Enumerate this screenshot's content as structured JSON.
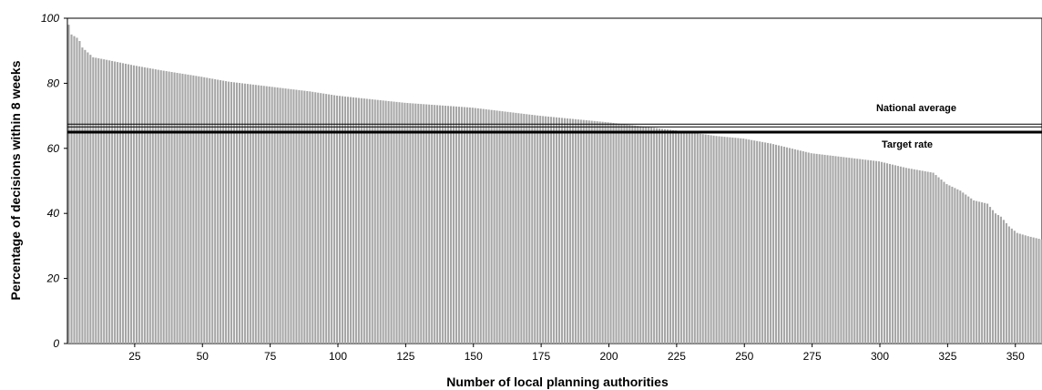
{
  "chart_data": {
    "type": "bar",
    "xlabel": "Number of local planning authorities",
    "ylabel": "Percentage of decisions within 8 weeks",
    "ylim": [
      0,
      100
    ],
    "xlim": [
      0,
      360
    ],
    "y_ticks": [
      0,
      20,
      40,
      60,
      80,
      100
    ],
    "x_ticks": [
      25,
      50,
      75,
      100,
      125,
      150,
      175,
      200,
      225,
      250,
      275,
      300,
      325,
      350
    ],
    "grid": false,
    "bar_color": "#a6a6a6",
    "sort": "descending",
    "bar_count": 360,
    "value_profile": [
      [
        1,
        98
      ],
      [
        2,
        95
      ],
      [
        3,
        94.5
      ],
      [
        4,
        94
      ],
      [
        5,
        93
      ],
      [
        6,
        91
      ],
      [
        8,
        89.5
      ],
      [
        10,
        88
      ],
      [
        15,
        87.2
      ],
      [
        25,
        85.5
      ],
      [
        35,
        84
      ],
      [
        50,
        82
      ],
      [
        60,
        80.5
      ],
      [
        75,
        79
      ],
      [
        90,
        77.5
      ],
      [
        100,
        76.2
      ],
      [
        125,
        74
      ],
      [
        150,
        72.5
      ],
      [
        175,
        70
      ],
      [
        200,
        68
      ],
      [
        210,
        67
      ],
      [
        225,
        65.5
      ],
      [
        240,
        63.8
      ],
      [
        250,
        63
      ],
      [
        260,
        61.5
      ],
      [
        275,
        58.5
      ],
      [
        290,
        57
      ],
      [
        300,
        56
      ],
      [
        310,
        54
      ],
      [
        320,
        52.5
      ],
      [
        325,
        49
      ],
      [
        330,
        47
      ],
      [
        335,
        44
      ],
      [
        340,
        43
      ],
      [
        343,
        40
      ],
      [
        345,
        39
      ],
      [
        348,
        36
      ],
      [
        351,
        34
      ],
      [
        355,
        33
      ],
      [
        360,
        32
      ]
    ],
    "reference_lines": [
      {
        "name": "National average",
        "value": 67,
        "color": "#000000",
        "style": "double"
      },
      {
        "name": "Target rate",
        "value": 65,
        "color": "#000000",
        "style": "thick"
      }
    ]
  }
}
